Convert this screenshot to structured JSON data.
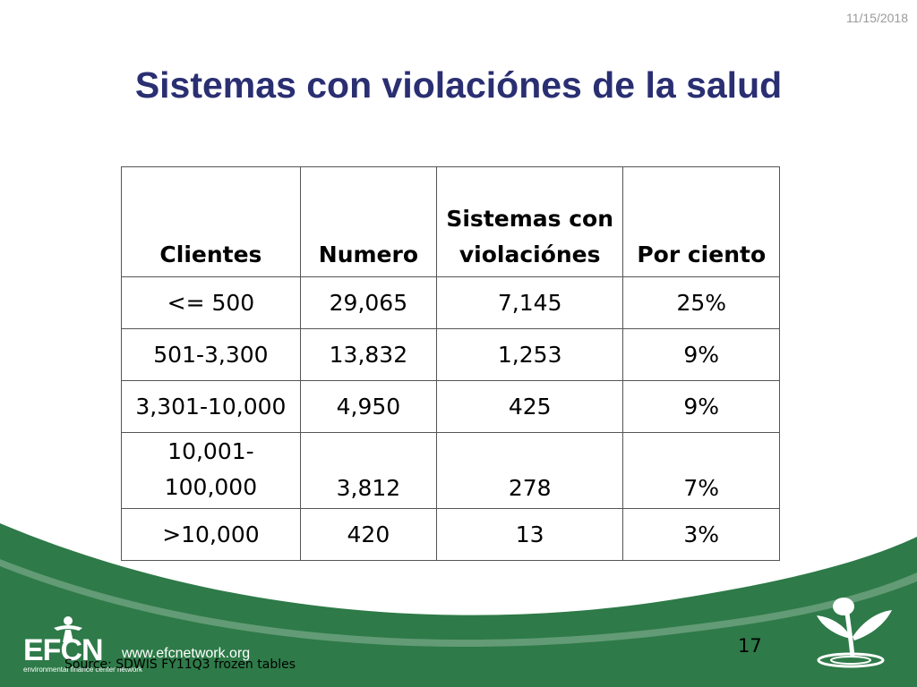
{
  "header": {
    "date": "11/15/2018"
  },
  "title": "Sistemas con violaciónes de la salud",
  "table": {
    "headers": [
      "Clientes",
      "Numero",
      "Sistemas con violaciónes",
      "Por ciento"
    ],
    "rows": [
      [
        "<= 500",
        "29,065",
        "7,145",
        "25%"
      ],
      [
        "501-3,300",
        "13,832",
        "1,253",
        "9%"
      ],
      [
        "3,301-10,000",
        "4,950",
        "425",
        "9%"
      ],
      [
        "10,001-100,000",
        "3,812",
        "278",
        "7%"
      ],
      [
        ">10,000",
        "420",
        "13",
        "3%"
      ]
    ]
  },
  "footer": {
    "logo_text": "EFCN",
    "logo_tagline": "environmental finance center network",
    "url": "www.efcnetwork.org",
    "source": "Source: SDWIS FY11Q3 frozen tables",
    "page_number": "17"
  },
  "colors": {
    "title": "#2a2f72",
    "footer_green": "#2e7a48"
  },
  "icons": [
    "efcn-logo-icon",
    "plant-sprout-icon"
  ]
}
